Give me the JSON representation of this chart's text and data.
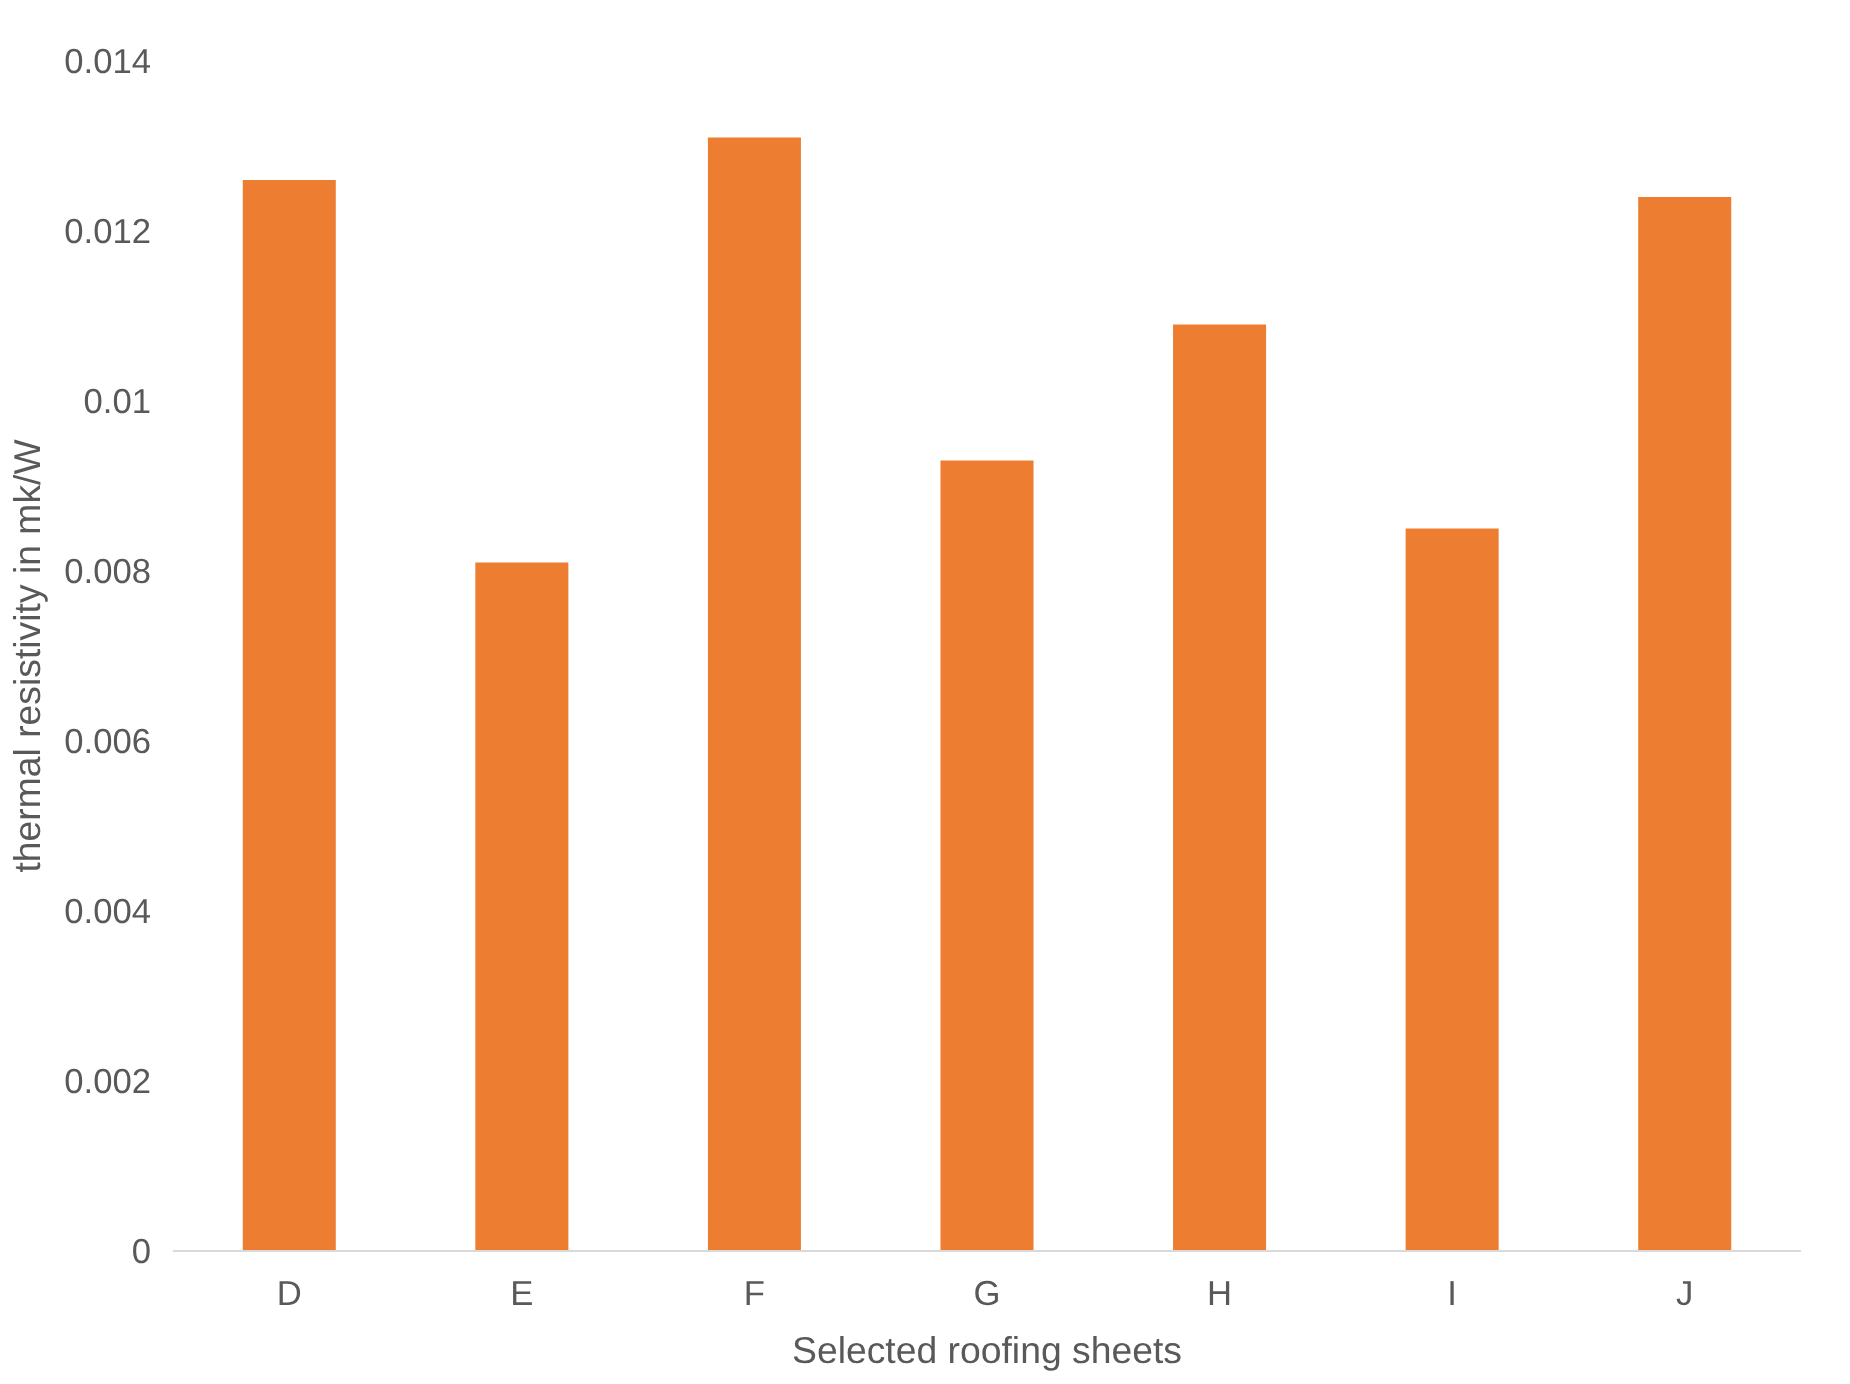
{
  "chart_data": {
    "type": "bar",
    "xlabel": "Selected roofing sheets",
    "ylabel": "thermal resistivity in mk/W",
    "categories": [
      "D",
      "E",
      "F",
      "G",
      "H",
      "I",
      "J"
    ],
    "values": [
      0.0126,
      0.0081,
      0.0131,
      0.0093,
      0.0109,
      0.0085,
      0.0124
    ],
    "color": "#ed7d31",
    "ylim": [
      0,
      0.014
    ],
    "yticks": [
      0,
      0.002,
      0.004,
      0.006,
      0.008,
      0.01,
      0.012,
      0.014
    ],
    "grid": false
  }
}
